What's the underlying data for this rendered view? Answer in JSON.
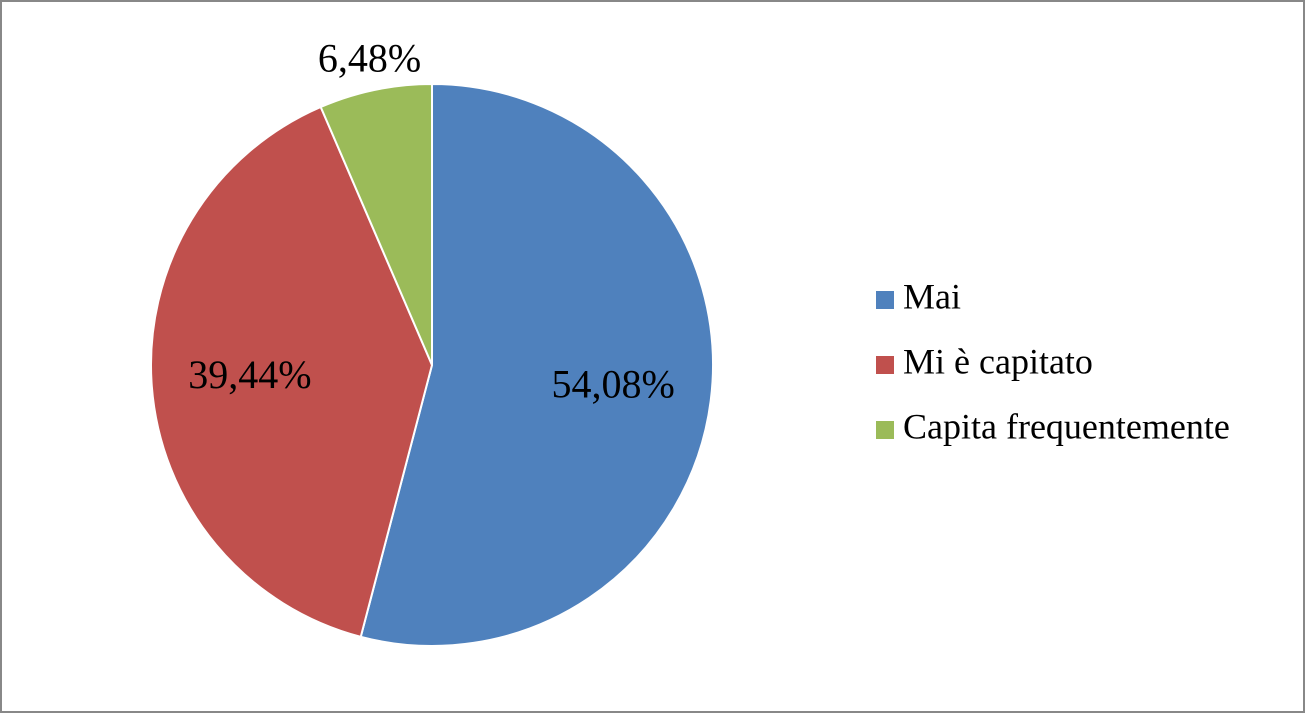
{
  "chart_data": {
    "type": "pie",
    "categories": [
      "Mai",
      "Mi è capitato",
      "Capita frequentemente"
    ],
    "values": [
      54.08,
      39.44,
      6.48
    ],
    "value_labels": [
      "54,08%",
      "39,44%",
      "6,48%"
    ],
    "colors": [
      "#4f81bd",
      "#c0504d",
      "#9bbb59"
    ],
    "legend": "right"
  }
}
